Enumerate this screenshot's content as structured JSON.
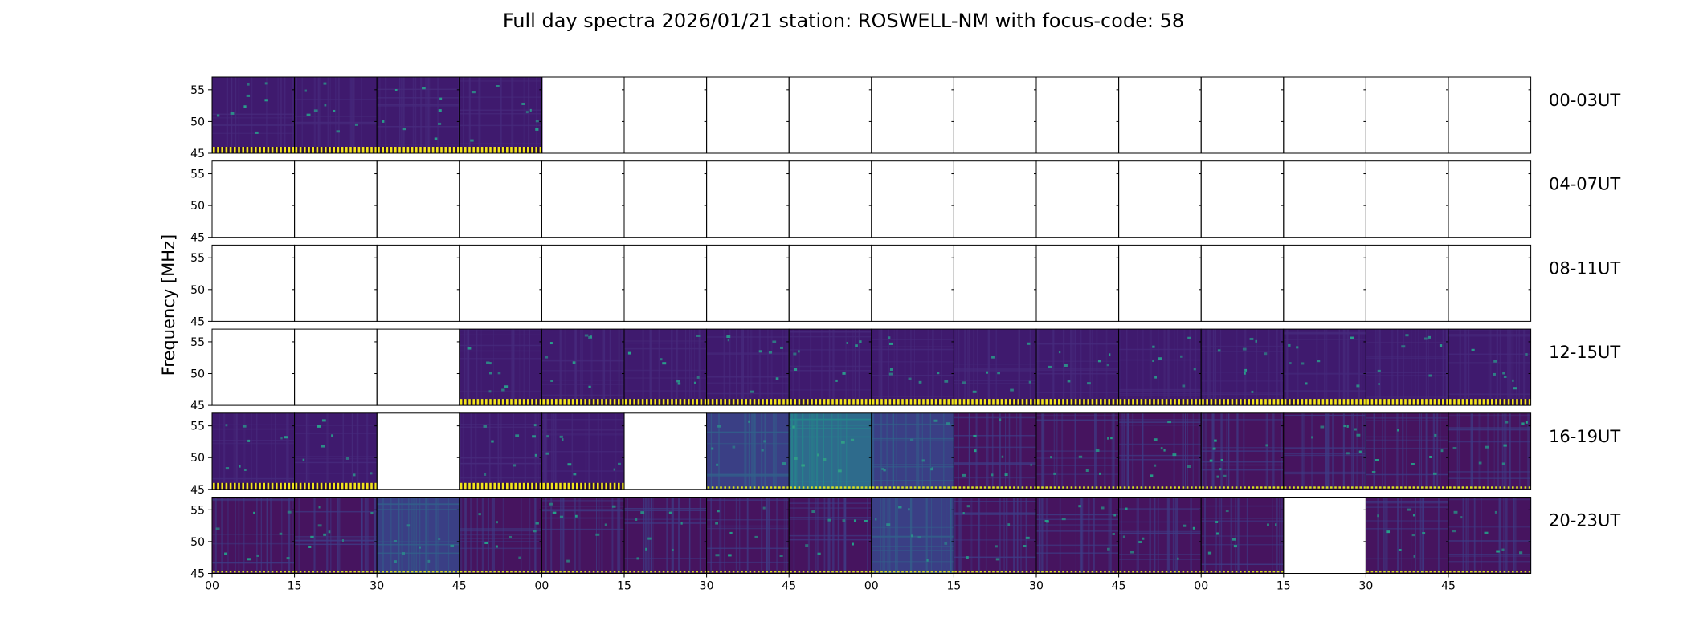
{
  "title": "Full day spectra 2026/01/21 station: ROSWELL-NM with focus-code: 58",
  "chart_data": {
    "type": "heatmap",
    "title": "Full day spectra 2026/01/21 station: ROSWELL-NM with focus-code: 58",
    "ylabel": "Frequency [MHz]",
    "xlabel": "",
    "ylim": [
      45,
      57
    ],
    "yticks": [
      45,
      50,
      55
    ],
    "xtick_labels": [
      "00",
      "15",
      "30",
      "45",
      "00",
      "15",
      "30",
      "45",
      "00",
      "15",
      "30",
      "45",
      "00",
      "15",
      "30",
      "45"
    ],
    "colormap": "viridis",
    "rows": [
      {
        "label": "00-03UT",
        "panels": [
          "A",
          "A",
          "A",
          "A",
          "E",
          "E",
          "E",
          "E",
          "E",
          "E",
          "E",
          "E",
          "E",
          "E",
          "E",
          "E"
        ]
      },
      {
        "label": "04-07UT",
        "panels": [
          "E",
          "E",
          "E",
          "E",
          "E",
          "E",
          "E",
          "E",
          "E",
          "E",
          "E",
          "E",
          "E",
          "E",
          "E",
          "E"
        ]
      },
      {
        "label": "08-11UT",
        "panels": [
          "E",
          "E",
          "E",
          "E",
          "E",
          "E",
          "E",
          "E",
          "E",
          "E",
          "E",
          "E",
          "E",
          "E",
          "E",
          "E"
        ]
      },
      {
        "label": "12-15UT",
        "panels": [
          "E",
          "E",
          "E",
          "A",
          "A",
          "A",
          "A",
          "A",
          "A",
          "A",
          "A",
          "A",
          "A",
          "A",
          "A",
          "A"
        ]
      },
      {
        "label": "16-19UT",
        "panels": [
          "A",
          "A",
          "E",
          "A",
          "A",
          "E",
          "C",
          "D",
          "C",
          "B",
          "B",
          "B",
          "B",
          "B",
          "B",
          "B"
        ]
      },
      {
        "label": "20-23UT",
        "panels": [
          "B",
          "B",
          "C",
          "B",
          "B",
          "B",
          "B",
          "B",
          "C",
          "B",
          "B",
          "B",
          "B",
          "E",
          "B",
          "B"
        ]
      }
    ],
    "panel_styles": {
      "A": {
        "bg": "#3f1a6e",
        "noise": "#472b7d",
        "spots": "#2aa08c",
        "bottom_band": "striped",
        "band_color": "#f2e51d"
      },
      "B": {
        "bg": "#46145f",
        "noise": "#3e3d87",
        "spots": "#25a28a",
        "bottom_band": "dotted",
        "band_color": "#d9e31b"
      },
      "C": {
        "bg": "#3a3f85",
        "noise": "#32618b",
        "spots": "#2b8f8b",
        "bottom_band": "dotted",
        "band_color": "#d9e31b"
      },
      "D": {
        "bg": "#2e6b8c",
        "noise": "#25888c",
        "spots": "#31a585",
        "bottom_band": "dotted",
        "band_color": "#d9e31b"
      },
      "E": {
        "empty": true
      }
    }
  }
}
